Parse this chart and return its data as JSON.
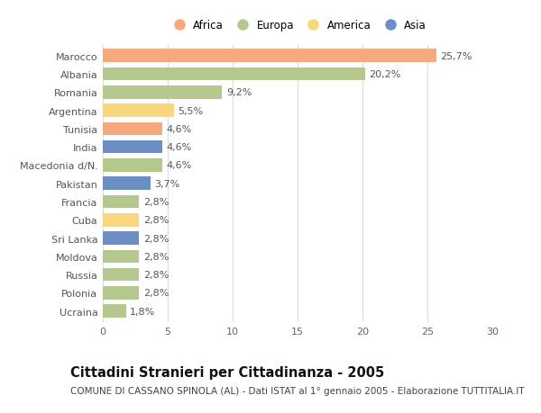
{
  "countries": [
    "Marocco",
    "Albania",
    "Romania",
    "Argentina",
    "Tunisia",
    "India",
    "Macedonia d/N.",
    "Pakistan",
    "Francia",
    "Cuba",
    "Sri Lanka",
    "Moldova",
    "Russia",
    "Polonia",
    "Ucraina"
  ],
  "values": [
    25.7,
    20.2,
    9.2,
    5.5,
    4.6,
    4.6,
    4.6,
    3.7,
    2.8,
    2.8,
    2.8,
    2.8,
    2.8,
    2.8,
    1.8
  ],
  "labels": [
    "25,7%",
    "20,2%",
    "9,2%",
    "5,5%",
    "4,6%",
    "4,6%",
    "4,6%",
    "3,7%",
    "2,8%",
    "2,8%",
    "2,8%",
    "2,8%",
    "2,8%",
    "2,8%",
    "1,8%"
  ],
  "continents": [
    "Africa",
    "Europa",
    "Europa",
    "America",
    "Africa",
    "Asia",
    "Europa",
    "Asia",
    "Europa",
    "America",
    "Asia",
    "Europa",
    "Europa",
    "Europa",
    "Europa"
  ],
  "colors": {
    "Africa": "#F4A97F",
    "Europa": "#B5C98E",
    "America": "#F9D77E",
    "Asia": "#6B8FC4"
  },
  "legend_order": [
    "Africa",
    "Europa",
    "America",
    "Asia"
  ],
  "xlim": [
    0,
    30
  ],
  "xticks": [
    0,
    5,
    10,
    15,
    20,
    25,
    30
  ],
  "title": "Cittadini Stranieri per Cittadinanza - 2005",
  "subtitle": "COMUNE DI CASSANO SPINOLA (AL) - Dati ISTAT al 1° gennaio 2005 - Elaborazione TUTTITALIA.IT",
  "bar_height": 0.72,
  "background_color": "#ffffff",
  "grid_color": "#dddddd",
  "label_fontsize": 8.0,
  "ytick_fontsize": 8.0,
  "xtick_fontsize": 8.0,
  "title_fontsize": 10.5,
  "subtitle_fontsize": 7.5,
  "legend_fontsize": 8.5
}
